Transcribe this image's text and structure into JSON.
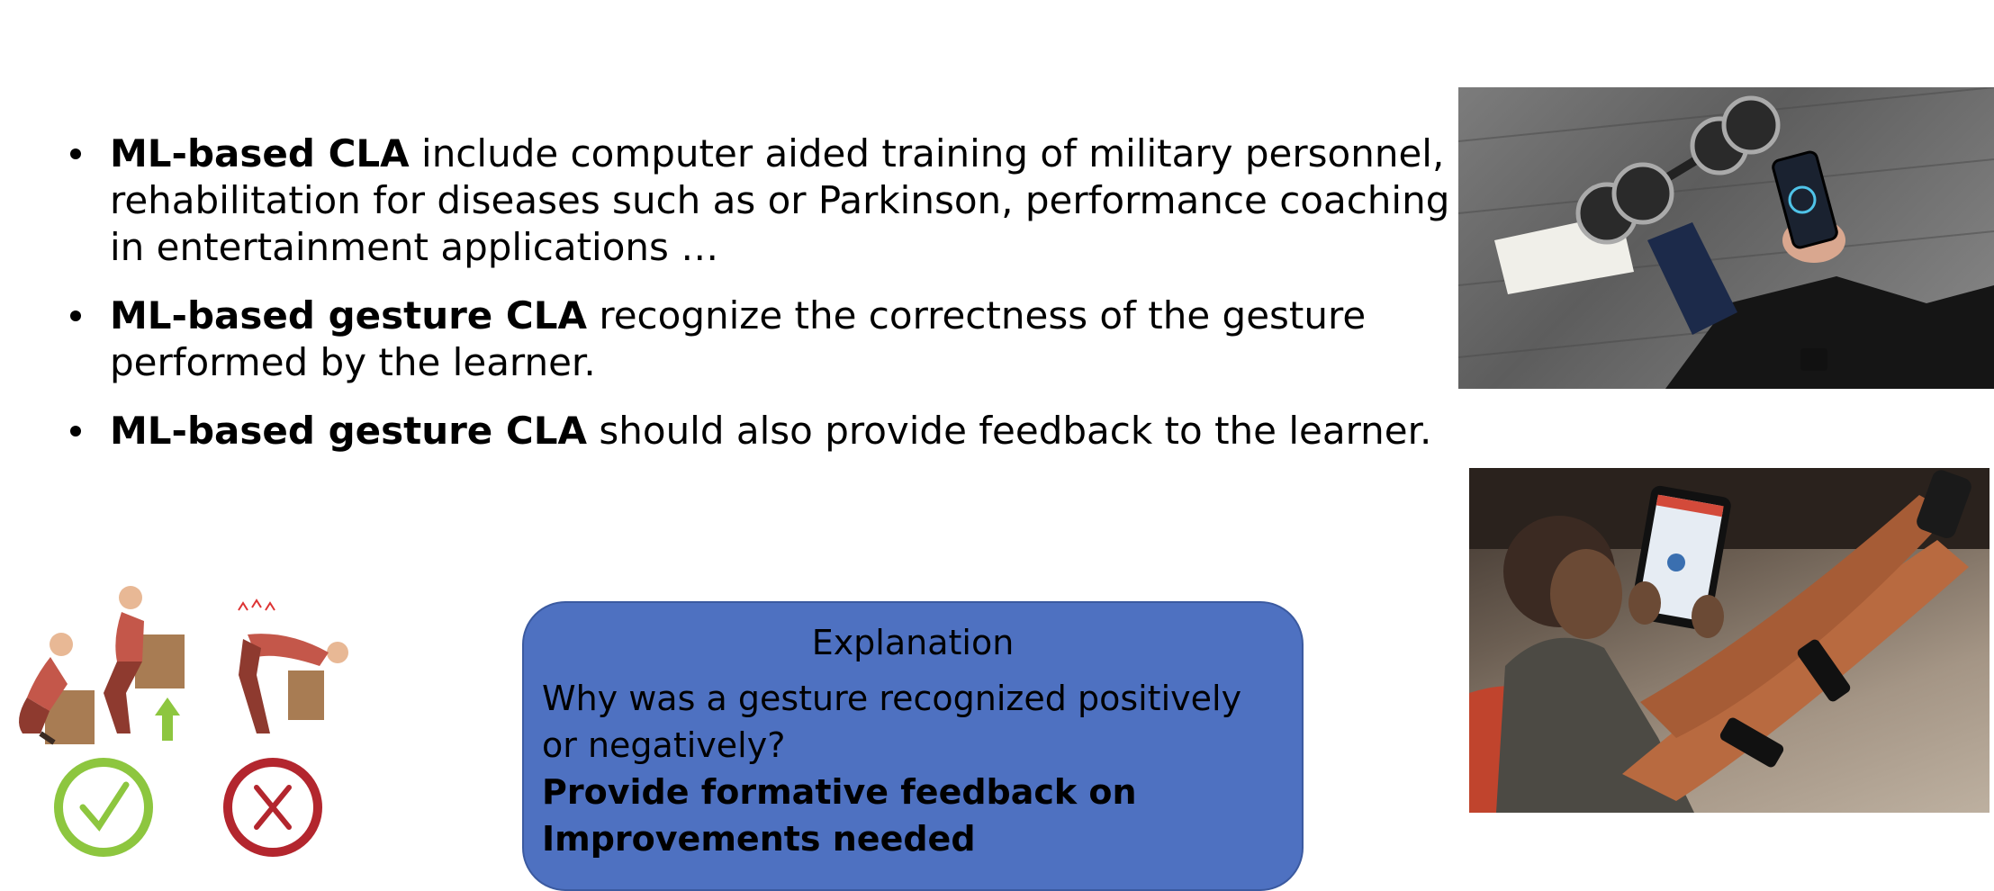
{
  "bullets": [
    {
      "bold": "ML-based CLA",
      "text": " include computer aided training of military personnel, rehabilitation for diseases such as or Parkinson, performance coaching in entertainment applications …"
    },
    {
      "bold": "ML-based gesture CLA",
      "text": " recognize the correctness of the gesture performed by the learner."
    },
    {
      "bold": "ML-based gesture CLA",
      "text": " should also provide feedback to the learner."
    }
  ],
  "explanation": {
    "title": "Explanation",
    "question": "Why was a gesture recognized positively or negatively?",
    "feedback_line1": "Provide formative feedback on",
    "feedback_line2": "Improvements needed"
  },
  "colors": {
    "box_fill": "#4e71c1",
    "check_green": "#8dc63f",
    "cross_red": "#b3262e"
  },
  "icons": [
    "check-mark-icon",
    "cross-mark-icon"
  ]
}
